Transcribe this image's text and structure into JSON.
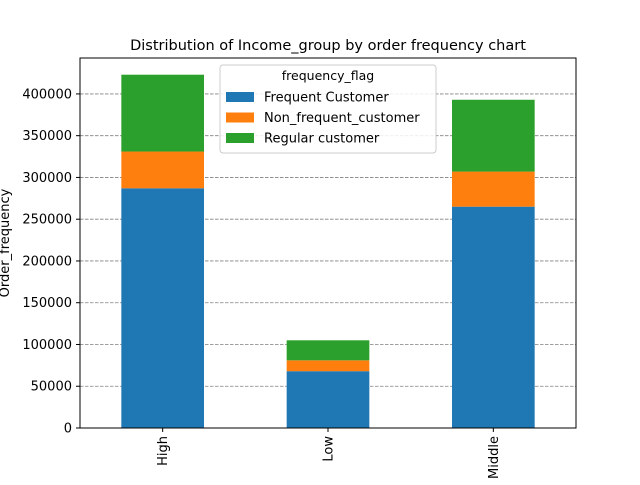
{
  "chart_data": {
    "type": "bar",
    "stacked": true,
    "title": "Distribution of Income_group  by order frequency chart",
    "xlabel": "",
    "ylabel": "Order_frequency",
    "categories": [
      "High",
      "Low",
      "Middle"
    ],
    "series": [
      {
        "name": "Frequent Customer",
        "color": "#1f77b4",
        "values": [
          287000,
          68000,
          265000
        ]
      },
      {
        "name": "Non_frequent_customer",
        "color": "#ff7f0e",
        "values": [
          44000,
          13000,
          42000
        ]
      },
      {
        "name": "Regular customer",
        "color": "#2ca02c",
        "values": [
          92000,
          24000,
          86000
        ]
      }
    ],
    "ylim": [
      0,
      443000
    ],
    "yticks": [
      0,
      50000,
      100000,
      150000,
      200000,
      250000,
      300000,
      350000,
      400000
    ],
    "grid": {
      "y": true,
      "style": "dashed",
      "color": "#808080"
    },
    "legend": {
      "title": "frequency_flag",
      "position": "top-center"
    }
  }
}
